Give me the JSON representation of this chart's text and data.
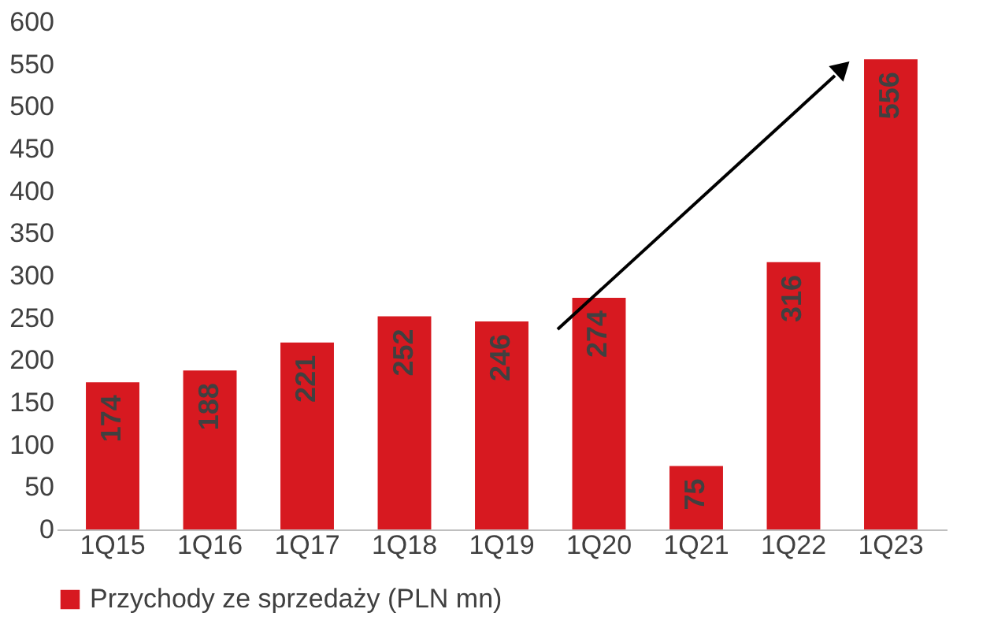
{
  "chart_data": {
    "type": "bar",
    "categories": [
      "1Q15",
      "1Q16",
      "1Q17",
      "1Q18",
      "1Q19",
      "1Q20",
      "1Q21",
      "1Q22",
      "1Q23"
    ],
    "series": [
      {
        "name": "Przychody ze sprzedaży (PLN mn)",
        "color": "#d71920",
        "values": [
          174,
          188,
          221,
          252,
          246,
          274,
          75,
          316,
          556
        ]
      }
    ],
    "ylim": [
      0,
      600
    ],
    "yticks": [
      0,
      50,
      100,
      150,
      200,
      250,
      300,
      350,
      400,
      450,
      500,
      550,
      600
    ],
    "grid": false,
    "legend": "bottom",
    "data_labels": true
  }
}
